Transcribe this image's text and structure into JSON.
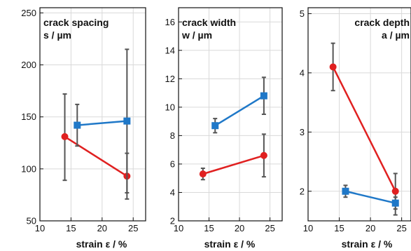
{
  "chart_data": [
    {
      "type": "scatter",
      "title": "crack spacing",
      "subtitle": "s / µm",
      "xlabel": "strain ε / %",
      "xlim": [
        10,
        27
      ],
      "ylim": [
        50,
        255
      ],
      "x_ticks": [
        10,
        15,
        20,
        25
      ],
      "y_ticks": [
        50,
        100,
        150,
        200,
        250
      ],
      "grid": true,
      "series": [
        {
          "color": "#e02020",
          "marker": "circle",
          "points": [
            {
              "x": 14,
              "y": 131,
              "err_low": 89,
              "err_high": 172
            },
            {
              "x": 24,
              "y": 93,
              "err_low": 71,
              "err_high": 115
            }
          ]
        },
        {
          "color": "#1f78c8",
          "marker": "square",
          "points": [
            {
              "x": 16,
              "y": 142,
              "err_low": 122,
              "err_high": 162
            },
            {
              "x": 24,
              "y": 146,
              "err_low": 77,
              "err_high": 215
            }
          ]
        }
      ]
    },
    {
      "type": "scatter",
      "title": "crack width",
      "subtitle": "w / µm",
      "xlabel": "strain ε / %",
      "xlim": [
        10,
        27
      ],
      "ylim": [
        2,
        17
      ],
      "x_ticks": [
        10,
        15,
        20,
        25
      ],
      "y_ticks": [
        2,
        4,
        6,
        8,
        10,
        12,
        14,
        16
      ],
      "grid": true,
      "series": [
        {
          "color": "#e02020",
          "marker": "circle",
          "points": [
            {
              "x": 14,
              "y": 5.3,
              "err_low": 4.9,
              "err_high": 5.7
            },
            {
              "x": 24,
              "y": 6.6,
              "err_low": 5.1,
              "err_high": 8.1
            }
          ]
        },
        {
          "color": "#1f78c8",
          "marker": "square",
          "points": [
            {
              "x": 16,
              "y": 8.7,
              "err_low": 8.2,
              "err_high": 9.2
            },
            {
              "x": 24,
              "y": 10.8,
              "err_low": 9.5,
              "err_high": 12.1
            }
          ]
        }
      ]
    },
    {
      "type": "scatter",
      "title": "crack depth",
      "subtitle": "a / µm",
      "xlabel": "strain ε / %",
      "xlim": [
        10,
        26.5
      ],
      "ylim": [
        1.5,
        5.1
      ],
      "x_ticks": [
        10,
        15,
        20,
        25
      ],
      "y_ticks": [
        2,
        3,
        4,
        5
      ],
      "grid": true,
      "series": [
        {
          "color": "#e02020",
          "marker": "circle",
          "points": [
            {
              "x": 14,
              "y": 4.1,
              "err_low": 3.7,
              "err_high": 4.5
            },
            {
              "x": 24,
              "y": 2.0,
              "err_low": 1.7,
              "err_high": 2.3
            }
          ]
        },
        {
          "color": "#1f78c8",
          "marker": "square",
          "points": [
            {
              "x": 16,
              "y": 2.0,
              "err_low": 1.9,
              "err_high": 2.1
            },
            {
              "x": 24,
              "y": 1.8,
              "err_low": 1.6,
              "err_high": 1.9
            }
          ]
        }
      ]
    }
  ]
}
